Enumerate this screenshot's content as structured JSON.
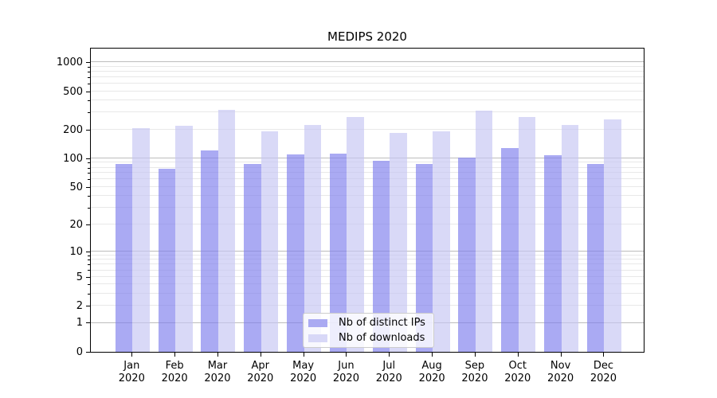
{
  "title": "MEDIPS 2020",
  "chart_data": {
    "type": "bar",
    "title": "MEDIPS 2020",
    "categories": [
      "Jan 2020",
      "Feb 2020",
      "Mar 2020",
      "Apr 2020",
      "May 2020",
      "Jun 2020",
      "Jul 2020",
      "Aug 2020",
      "Sep 2020",
      "Oct 2020",
      "Nov 2020",
      "Dec 2020"
    ],
    "months": [
      "Jan",
      "Feb",
      "Mar",
      "Apr",
      "May",
      "Jun",
      "Jul",
      "Aug",
      "Sep",
      "Oct",
      "Nov",
      "Dec"
    ],
    "year": "2020",
    "series": [
      {
        "name": "Nb of distinct IPs",
        "color": "#aaaaf2",
        "fill": "rgba(124,124,237,0.65)",
        "values": [
          88,
          78,
          122,
          87,
          109,
          112,
          94,
          87,
          101,
          128,
          108,
          88
        ]
      },
      {
        "name": "Nb of downloads",
        "color": "#d8d8f7",
        "fill": "rgba(196,196,243,0.65)",
        "values": [
          205,
          217,
          320,
          190,
          223,
          270,
          185,
          190,
          313,
          270,
          224,
          253
        ]
      }
    ],
    "yscale": "log1p",
    "ylim": [
      0,
      1400
    ],
    "y_ticks": [
      0,
      1,
      2,
      5,
      10,
      20,
      50,
      100,
      200,
      500,
      1000
    ],
    "y_major_gridlines": [
      1,
      10,
      100,
      1000
    ],
    "grid": "horizontal",
    "legend_position": "lower-center-right",
    "xlabel": "",
    "ylabel": ""
  },
  "colors": {
    "grid_major": "#bdbdbd",
    "grid_minor": "#e8e8e8",
    "axis": "#000000",
    "legend_border": "#cccccc",
    "background": "#ffffff"
  }
}
